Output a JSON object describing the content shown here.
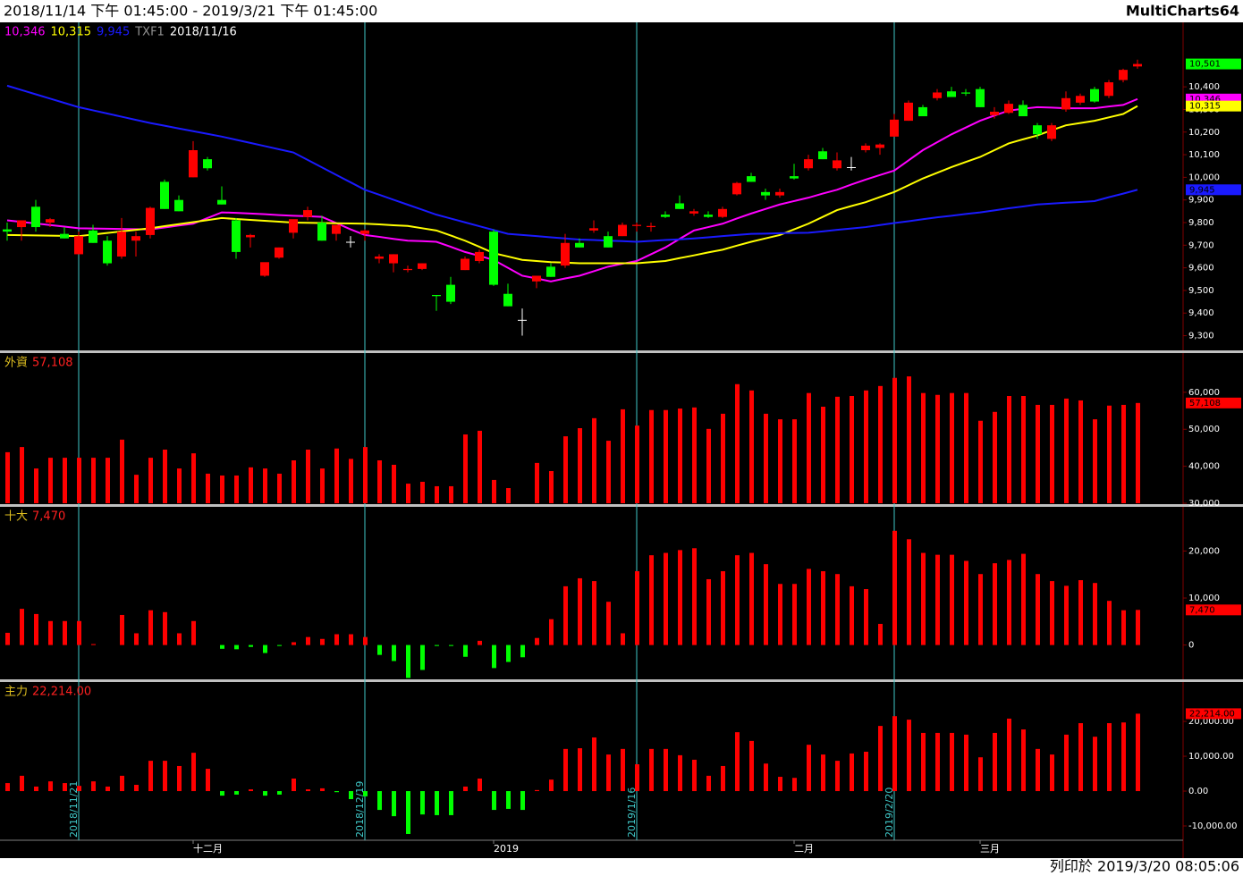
{
  "header": {
    "range": "2018/11/14 下午 01:45:00 - 2019/3/21 下午 01:45:00",
    "brand": "MultiCharts64"
  },
  "footer": {
    "printed": "列印於 2019/3/20 08:05:06"
  },
  "chart_data": [
    {
      "type": "candlestick",
      "symbol": "TXF1",
      "date": "2018/11/16",
      "categories": [
        null,
        null,
        null,
        null,
        null,
        null,
        null,
        null,
        null,
        null,
        null,
        null,
        null,
        "十二月",
        null,
        null,
        null,
        null,
        null,
        null,
        null,
        null,
        null,
        null,
        null,
        null,
        null,
        null,
        null,
        null,
        null,
        null,
        null,
        null,
        "2019",
        null,
        null,
        null,
        null,
        null,
        null,
        null,
        null,
        null,
        null,
        null,
        null,
        null,
        null,
        null,
        null,
        null,
        null,
        null,
        null,
        "二月",
        null,
        null,
        null,
        null,
        null,
        null,
        null,
        null,
        null,
        null,
        null,
        null,
        "三月",
        null,
        null,
        null,
        null,
        null,
        null,
        null,
        null,
        null,
        null,
        null
      ],
      "date_markers": [
        null,
        null,
        null,
        null,
        null,
        "2018/11/21",
        null,
        null,
        null,
        null,
        null,
        null,
        null,
        null,
        null,
        null,
        null,
        null,
        null,
        null,
        null,
        null,
        null,
        null,
        null,
        "2018/12/19",
        null,
        null,
        null,
        null,
        null,
        null,
        null,
        null,
        null,
        null,
        null,
        null,
        null,
        null,
        null,
        null,
        null,
        null,
        "2019/1/16",
        null,
        null,
        null,
        null,
        null,
        null,
        null,
        null,
        null,
        null,
        null,
        null,
        null,
        null,
        null,
        null,
        null,
        "2019/2/20",
        null,
        null,
        null,
        null,
        null,
        null,
        null,
        null,
        null,
        null,
        null,
        null,
        null,
        null,
        null,
        null,
        null
      ],
      "open": [
        9770,
        9780,
        9870,
        9800,
        9750,
        9660,
        9765,
        9720,
        9650,
        9720,
        9745,
        9980,
        9900,
        10000,
        10080,
        9900,
        9810,
        9735,
        9565,
        9645,
        9755,
        9825,
        9800,
        9750,
        9715,
        9750,
        9640,
        9620,
        9590,
        9595,
        9480,
        9525,
        9590,
        9630,
        9760,
        9485,
        9370,
        9540,
        9605,
        9610,
        9710,
        9765,
        9740,
        9740,
        9785,
        9780,
        9835,
        9885,
        9840,
        9835,
        9825,
        9925,
        10005,
        9935,
        9920,
        10005,
        10040,
        10115,
        10040,
        10045,
        10120,
        10130,
        10180,
        10250,
        10310,
        10350,
        10380,
        10375,
        10390,
        10275,
        10285,
        10320,
        10230,
        10170,
        10300,
        10330,
        10390,
        10360,
        10430,
        10490
      ],
      "high": [
        9800,
        9810,
        9900,
        9820,
        9780,
        9760,
        9790,
        9740,
        9820,
        9760,
        9870,
        9990,
        9920,
        10160,
        10090,
        9960,
        9820,
        9750,
        9620,
        9690,
        9810,
        9870,
        9830,
        9790,
        9740,
        9770,
        9660,
        9660,
        9610,
        9620,
        9480,
        9560,
        9650,
        9680,
        9770,
        9530,
        9420,
        9560,
        9620,
        9750,
        9730,
        9810,
        9760,
        9800,
        9800,
        9800,
        9850,
        9920,
        9860,
        9850,
        9870,
        9980,
        10020,
        9950,
        9950,
        10060,
        10100,
        10130,
        10110,
        10090,
        10150,
        10150,
        10280,
        10340,
        10320,
        10390,
        10400,
        10390,
        10400,
        10310,
        10340,
        10340,
        10240,
        10240,
        10380,
        10370,
        10400,
        10430,
        10480,
        10520
      ],
      "low": [
        9720,
        9720,
        9760,
        9780,
        9730,
        9660,
        9710,
        9610,
        9640,
        9650,
        9730,
        9860,
        9850,
        10000,
        10030,
        9880,
        9640,
        9690,
        9560,
        9640,
        9730,
        9810,
        9720,
        9720,
        9690,
        9720,
        9620,
        9580,
        9580,
        9590,
        9410,
        9440,
        9590,
        9620,
        9520,
        9430,
        9300,
        9510,
        9560,
        9600,
        9690,
        9755,
        9690,
        9740,
        9760,
        9760,
        9820,
        9860,
        9830,
        9820,
        9820,
        9920,
        9980,
        9900,
        9910,
        9990,
        10030,
        10080,
        10030,
        10030,
        10110,
        10100,
        10180,
        10250,
        10270,
        10340,
        10355,
        10360,
        10310,
        10260,
        10280,
        10270,
        10170,
        10160,
        10290,
        10320,
        10330,
        10350,
        10420,
        10480
      ],
      "close": [
        9760,
        9810,
        9780,
        9815,
        9730,
        9740,
        9710,
        9620,
        9760,
        9740,
        9865,
        9860,
        9850,
        10120,
        10040,
        9880,
        9670,
        9745,
        9625,
        9690,
        9815,
        9855,
        9720,
        9790,
        9715,
        9765,
        9650,
        9660,
        9595,
        9620,
        9475,
        9450,
        9640,
        9670,
        9525,
        9430,
        9370,
        9565,
        9560,
        9710,
        9690,
        9775,
        9690,
        9790,
        9790,
        9785,
        9825,
        9860,
        9850,
        9825,
        9860,
        9975,
        9980,
        9920,
        9935,
        9995,
        10080,
        10080,
        10075,
        10045,
        10140,
        10145,
        10255,
        10330,
        10270,
        10375,
        10355,
        10370,
        10310,
        10290,
        10325,
        10270,
        10190,
        10230,
        10350,
        10360,
        10335,
        10420,
        10475,
        10501
      ],
      "last_label": "10,501",
      "up_color": "#ff0000",
      "down_color": "#00ff00",
      "last_color": "#00ff00",
      "series": [
        {
          "value_label": "10,346",
          "color": "#ff00ff",
          "values": [
            9810,
            9803,
            9796,
            9789,
            9782,
            9775,
            9774,
            9773,
            9772,
            9771,
            9770,
            9778,
            9787,
            9795,
            9820,
            9845,
            9843,
            9840,
            9837,
            9833,
            9830,
            9828,
            9825,
            9798,
            9770,
            9745,
            9737,
            9728,
            9720,
            9718,
            9715,
            9693,
            9670,
            9653,
            9635,
            9600,
            9565,
            9553,
            9540,
            9553,
            9565,
            9585,
            9605,
            9618,
            9630,
            9660,
            9690,
            9728,
            9765,
            9780,
            9795,
            9818,
            9840,
            9860,
            9880,
            9895,
            9910,
            9928,
            9945,
            9968,
            9990,
            10010,
            10030,
            10075,
            10120,
            10155,
            10190,
            10220,
            10250,
            10273,
            10295,
            10303,
            10310,
            10308,
            10305,
            10305,
            10305,
            10313,
            10320,
            10346
          ]
        },
        {
          "value_label": "10,315",
          "color": "#ffff00",
          "values": [
            9745,
            9744,
            9743,
            9742,
            9741,
            9740,
            9747,
            9754,
            9761,
            9768,
            9775,
            9784,
            9793,
            9802,
            9811,
            9820,
            9816,
            9812,
            9808,
            9804,
            9800,
            9799,
            9798,
            9797,
            9796,
            9795,
            9792,
            9788,
            9785,
            9775,
            9765,
            9743,
            9720,
            9693,
            9665,
            9650,
            9635,
            9630,
            9625,
            9623,
            9620,
            9620,
            9620,
            9620,
            9620,
            9625,
            9630,
            9643,
            9655,
            9668,
            9680,
            9698,
            9715,
            9730,
            9745,
            9770,
            9795,
            9825,
            9855,
            9873,
            9890,
            9913,
            9935,
            9965,
            9995,
            10020,
            10045,
            10068,
            10090,
            10120,
            10150,
            10168,
            10185,
            10208,
            10230,
            10240,
            10250,
            10265,
            10280,
            10315
          ]
        },
        {
          "value_label": "9,945",
          "color": "#1a1aff",
          "values": [
            10405,
            10386,
            10367,
            10348,
            10329,
            10310,
            10296,
            10282,
            10268,
            10254,
            10240,
            10228,
            10216,
            10204,
            10192,
            10180,
            10166,
            10152,
            10138,
            10124,
            10110,
            10077,
            10044,
            10011,
            9978,
            9945,
            9923,
            9901,
            9879,
            9857,
            9835,
            9818,
            9801,
            9784,
            9767,
            9750,
            9745,
            9740,
            9735,
            9730,
            9725,
            9723,
            9720,
            9718,
            9715,
            9719,
            9723,
            9726,
            9730,
            9735,
            9740,
            9745,
            9750,
            9751,
            9753,
            9754,
            9755,
            9761,
            9768,
            9774,
            9780,
            9789,
            9798,
            9806,
            9815,
            9823,
            9830,
            9838,
            9845,
            9854,
            9863,
            9871,
            9880,
            9884,
            9888,
            9891,
            9895,
            9912,
            9928,
            9945
          ]
        }
      ],
      "ylim": [
        9235,
        10685
      ],
      "yticks": [
        {
          "value": 9300,
          "label": "9,300"
        },
        {
          "value": 9400,
          "label": "9,400"
        },
        {
          "value": 9500,
          "label": "9,500"
        },
        {
          "value": 9600,
          "label": "9,600"
        },
        {
          "value": 9700,
          "label": "9,700"
        },
        {
          "value": 9800,
          "label": "9,800"
        },
        {
          "value": 9900,
          "label": "9,900"
        },
        {
          "value": 10000,
          "label": "10,000"
        },
        {
          "value": 10100,
          "label": "10,100"
        },
        {
          "value": 10200,
          "label": "10,200"
        },
        {
          "value": 10300,
          "label": "10,300"
        },
        {
          "value": 10400,
          "label": "10,400"
        }
      ]
    },
    {
      "type": "bar",
      "name": "外資",
      "last_label": "57,108",
      "up_color": "#ff0000",
      "down_color": "#00ff00",
      "values": [
        43800,
        45200,
        39400,
        42300,
        42300,
        42300,
        42300,
        42300,
        47200,
        37700,
        42300,
        44500,
        39400,
        43500,
        38000,
        37500,
        37500,
        39700,
        39400,
        38000,
        41600,
        44500,
        39400,
        44800,
        42000,
        45200,
        41600,
        40400,
        35300,
        35800,
        34600,
        34600,
        48600,
        49600,
        36300,
        34100,
        29000,
        40900,
        38700,
        48100,
        50300,
        53000,
        46900,
        55400,
        51000,
        55200,
        55200,
        55600,
        55900,
        50100,
        54200,
        62200,
        60500,
        54200,
        52700,
        52700,
        59800,
        56100,
        58800,
        59000,
        60500,
        61700,
        63900,
        64300,
        59800,
        59300,
        59800,
        59800,
        52300,
        54700,
        59000,
        59000,
        56600,
        56600,
        58300,
        57800,
        52700,
        56400,
        56600,
        57108
      ],
      "ylim": [
        30000,
        70600
      ],
      "yticks": [
        {
          "value": 30000,
          "label": "30,000"
        },
        {
          "value": 40000,
          "label": "40,000"
        },
        {
          "value": 50000,
          "label": "50,000"
        },
        {
          "value": 60000,
          "label": "60,000"
        }
      ]
    },
    {
      "type": "bar",
      "name": "十大",
      "last_label": "7,470",
      "up_color": "#ff0000",
      "down_color": "#00ff00",
      "values": [
        2600,
        7700,
        6600,
        5100,
        5100,
        5100,
        200,
        0,
        6400,
        2500,
        7400,
        7000,
        2500,
        5100,
        0,
        -800,
        -900,
        -400,
        -1700,
        -200,
        600,
        1700,
        1300,
        2300,
        2300,
        1700,
        -2100,
        -3400,
        -7000,
        -5300,
        -200,
        -200,
        -2500,
        900,
        -4900,
        -3600,
        -2600,
        1500,
        5500,
        12500,
        14200,
        13600,
        9200,
        2500,
        15700,
        19100,
        19600,
        20200,
        20600,
        14000,
        15700,
        19100,
        19600,
        17200,
        13000,
        13000,
        16200,
        15700,
        15100,
        12500,
        11900,
        4500,
        24300,
        22500,
        19600,
        19200,
        19200,
        17900,
        15100,
        17400,
        18100,
        19400,
        15100,
        13600,
        12600,
        13800,
        13200,
        9400,
        7400,
        7470
      ],
      "ylim": [
        -7300,
        29400
      ],
      "yticks": [
        0,
        {
          "value": 10000,
          "label": "10,000"
        },
        {
          "value": 20000,
          "label": "20,000"
        }
      ]
    },
    {
      "type": "bar",
      "name": "主力",
      "last_label": "22,214.00",
      "up_color": "#ff0000",
      "down_color": "#00ff00",
      "values": [
        2300,
        4400,
        1300,
        2800,
        2300,
        1500,
        2800,
        1300,
        4400,
        1800,
        8700,
        8700,
        7200,
        11000,
        6400,
        -1300,
        -1000,
        500,
        -1300,
        -1000,
        3600,
        500,
        800,
        -300,
        -2300,
        -1500,
        -5400,
        -7200,
        -12300,
        -6700,
        -6900,
        -6900,
        1300,
        3600,
        -5400,
        -5100,
        -5400,
        300,
        3300,
        12100,
        12300,
        15400,
        10500,
        12100,
        7700,
        12100,
        12100,
        10300,
        9000,
        4400,
        7200,
        16900,
        14400,
        7900,
        4100,
        3800,
        13300,
        10500,
        8700,
        10800,
        11300,
        18700,
        21500,
        20500,
        16700,
        16700,
        16700,
        16200,
        9700,
        16700,
        20800,
        17700,
        12100,
        10500,
        16200,
        19500,
        15600,
        19500,
        19700,
        22214
      ],
      "ylim": [
        -14100,
        31300
      ],
      "yticks": [
        {
          "value": -10000,
          "label": "-10,000.00"
        },
        {
          "value": 0,
          "label": "0.00"
        },
        {
          "value": 10000,
          "label": "10,000.00"
        },
        {
          "value": 20000,
          "label": "20,000.00"
        }
      ]
    }
  ]
}
